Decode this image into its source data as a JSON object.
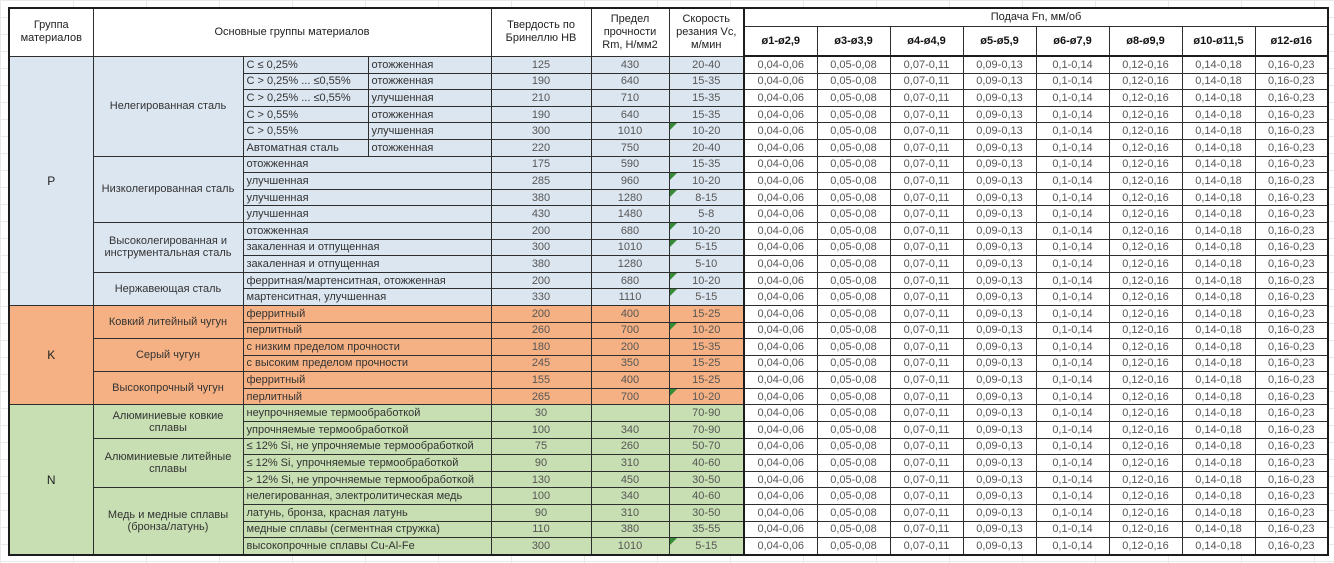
{
  "header": {
    "col_group": "Группа материалов",
    "col_material": "Основные группы материалов",
    "col_hb": "Твердость по Бринеллю HB",
    "col_rm": "Предел прочности Rm, Н/мм2",
    "col_vc": "Скорость резания Vc, м/мин",
    "col_feed": "Подача Fn, мм/об",
    "diameters": [
      "ø1-ø2,9",
      "ø3-ø3,9",
      "ø4-ø4,9",
      "ø5-ø5,9",
      "ø6-ø7,9",
      "ø8-ø9,9",
      "ø10-ø11,5",
      "ø12-ø16"
    ]
  },
  "feed_values": [
    "0,04-0,06",
    "0,05-0,08",
    "0,07-0,11",
    "0,09-0,13",
    "0,1-0,14",
    "0,12-0,16",
    "0,14-0,18",
    "0,16-0,23"
  ],
  "colors": {
    "section_p": "#DCE6F1",
    "section_k": "#F5B183",
    "section_n": "#C7DFB2",
    "error_flag": "#368C36"
  },
  "groups": [
    {
      "letter": "P",
      "color": "#DCE6F1",
      "subgroups": [
        {
          "name": "Нелегированная сталь",
          "rows": [
            {
              "c1": "C ≤ 0,25%",
              "c2": "отожженная",
              "hb": "125",
              "rm": "430",
              "vc": "20-40",
              "flag": false
            },
            {
              "c1": "C > 0,25% ... ≤0,55%",
              "c2": "отожженная",
              "hb": "190",
              "rm": "640",
              "vc": "15-35",
              "flag": false
            },
            {
              "c1": "C > 0,25% ... ≤0,55%",
              "c2": "улучшенная",
              "hb": "210",
              "rm": "710",
              "vc": "15-35",
              "flag": false
            },
            {
              "c1": "C > 0,55%",
              "c2": "отожженная",
              "hb": "190",
              "rm": "640",
              "vc": "15-35",
              "flag": false
            },
            {
              "c1": "C > 0,55%",
              "c2": "улучшенная",
              "hb": "300",
              "rm": "1010",
              "vc": "10-20",
              "flag": true
            },
            {
              "c1": "Автоматная сталь",
              "c2": "отожженная",
              "hb": "220",
              "rm": "750",
              "vc": "20-40",
              "flag": false
            }
          ]
        },
        {
          "name": "Низколегированная сталь",
          "rows": [
            {
              "desc": "отожженная",
              "hb": "175",
              "rm": "590",
              "vc": "15-35",
              "flag": false
            },
            {
              "desc": "улучшенная",
              "hb": "285",
              "rm": "960",
              "vc": "10-20",
              "flag": true
            },
            {
              "desc": "улучшенная",
              "hb": "380",
              "rm": "1280",
              "vc": "8-15",
              "flag": true
            },
            {
              "desc": "улучшенная",
              "hb": "430",
              "rm": "1480",
              "vc": "5-8",
              "flag": false
            }
          ]
        },
        {
          "name": "Высоколегированная и инструментальная сталь",
          "rows": [
            {
              "desc": "отожженная",
              "hb": "200",
              "rm": "680",
              "vc": "10-20",
              "flag": true
            },
            {
              "desc": "закаленная и отпущенная",
              "hb": "300",
              "rm": "1010",
              "vc": "5-15",
              "flag": true
            },
            {
              "desc": "закаленная и отпущенная",
              "hb": "380",
              "rm": "1280",
              "vc": "5-10",
              "flag": false
            }
          ]
        },
        {
          "name": "Нержавеющая сталь",
          "rows": [
            {
              "desc": "ферритная/мартенситная, отожженная",
              "hb": "200",
              "rm": "680",
              "vc": "10-20",
              "flag": true
            },
            {
              "desc": "мартенситная, улучшенная",
              "hb": "330",
              "rm": "1110",
              "vc": "5-15",
              "flag": true
            }
          ]
        }
      ]
    },
    {
      "letter": "K",
      "color": "#F5B183",
      "subgroups": [
        {
          "name": "Ковкий литейный чугун",
          "rows": [
            {
              "desc": "ферритный",
              "hb": "200",
              "rm": "400",
              "vc": "15-25",
              "flag": false
            },
            {
              "desc": "перлитный",
              "hb": "260",
              "rm": "700",
              "vc": "10-20",
              "flag": true
            }
          ]
        },
        {
          "name": "Серый чугун",
          "rows": [
            {
              "desc": "с низким пределом прочности",
              "hb": "180",
              "rm": "200",
              "vc": "15-35",
              "flag": false
            },
            {
              "desc": "с высоким пределом прочности",
              "hb": "245",
              "rm": "350",
              "vc": "15-25",
              "flag": false
            }
          ]
        },
        {
          "name": "Высокопрочный чугун",
          "rows": [
            {
              "desc": "ферритный",
              "hb": "155",
              "rm": "400",
              "vc": "15-25",
              "flag": false
            },
            {
              "desc": "перлитный",
              "hb": "265",
              "rm": "700",
              "vc": "10-20",
              "flag": true
            }
          ]
        }
      ]
    },
    {
      "letter": "N",
      "color": "#C7DFB2",
      "subgroups": [
        {
          "name": "Алюминиевые ковкие сплавы",
          "rows": [
            {
              "desc": "неупрочняемые термообработкой",
              "hb": "30",
              "rm": "",
              "vc": "70-90",
              "flag": false
            },
            {
              "desc": "упрочняемые термообработкой",
              "hb": "100",
              "rm": "340",
              "vc": "70-90",
              "flag": false
            }
          ]
        },
        {
          "name": "Алюминиевые литейные сплавы",
          "rows": [
            {
              "desc": "≤ 12% Si, не упрочняемые термообработкой",
              "hb": "75",
              "rm": "260",
              "vc": "50-70",
              "flag": false
            },
            {
              "desc": "≤ 12% Si, упрочняемые термообработкой",
              "hb": "90",
              "rm": "310",
              "vc": "40-60",
              "flag": false
            },
            {
              "desc": "> 12% Si, не упрочняемые термообработкой",
              "hb": "130",
              "rm": "450",
              "vc": "30-50",
              "flag": false
            }
          ]
        },
        {
          "name": "Медь и медные сплавы (бронза/латунь)",
          "rows": [
            {
              "desc": "нелегированная, электролитическая медь",
              "hb": "100",
              "rm": "340",
              "vc": "40-60",
              "flag": false
            },
            {
              "desc": "латунь, бронза, красная латунь",
              "hb": "90",
              "rm": "310",
              "vc": "30-50",
              "flag": false
            },
            {
              "desc": "медные сплавы (сегментная стружка)",
              "hb": "110",
              "rm": "380",
              "vc": "35-55",
              "flag": false
            },
            {
              "desc": "высокопрочные сплавы Cu-Al-Fe",
              "hb": "300",
              "rm": "1010",
              "vc": "5-15",
              "flag": true
            }
          ]
        }
      ]
    }
  ]
}
